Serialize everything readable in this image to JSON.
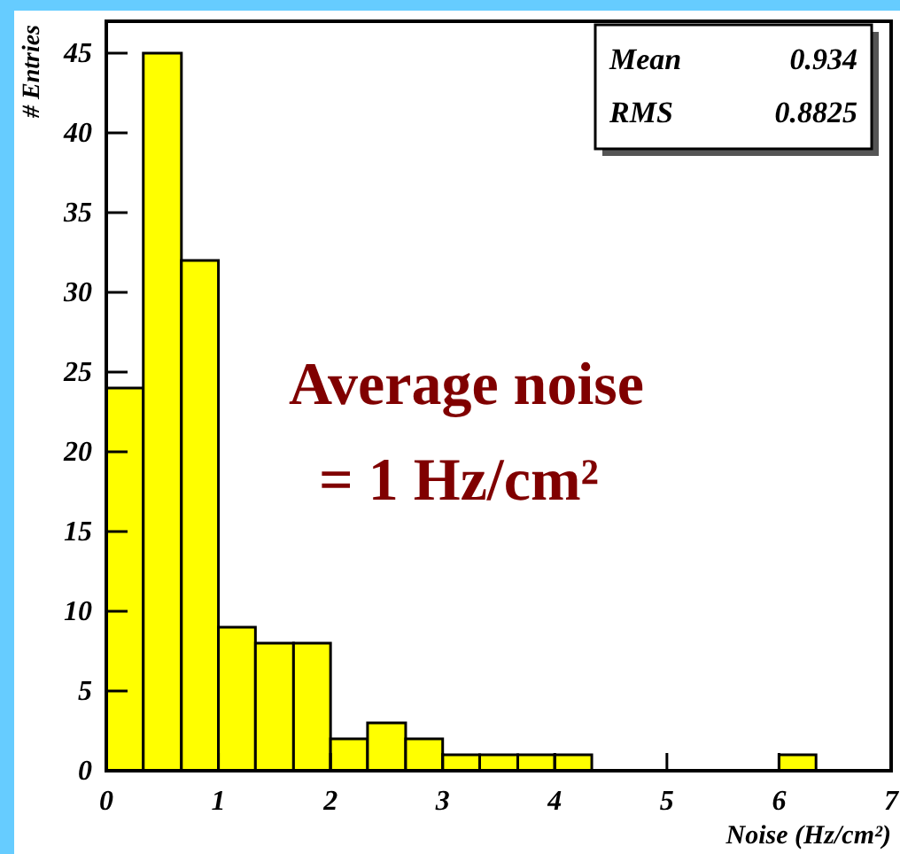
{
  "chart_data": {
    "type": "histogram",
    "xlabel": "Noise (Hz/cm²)",
    "ylabel": "# Entries",
    "bins": [
      0,
      0.33,
      0.67,
      1,
      1.33,
      1.67,
      2,
      2.33,
      2.67,
      3,
      3.33,
      3.67,
      4,
      4.33,
      6,
      6.33
    ],
    "values": [
      24,
      45,
      32,
      9,
      8,
      8,
      2,
      3,
      2,
      1,
      1,
      1,
      1,
      0,
      1
    ],
    "color": "#ffff00",
    "xlim": [
      0,
      7
    ],
    "xticks": [
      0,
      1,
      2,
      3,
      4,
      5,
      6,
      7
    ],
    "ylim": [
      0,
      47
    ],
    "yticks": [
      0,
      5,
      10,
      15,
      20,
      25,
      30,
      35,
      40,
      45
    ],
    "grid": false,
    "annotations": [
      "Mean 0.934",
      "RMS 0.8825",
      "Average noise",
      "= 1 Hz/cm²"
    ]
  }
}
